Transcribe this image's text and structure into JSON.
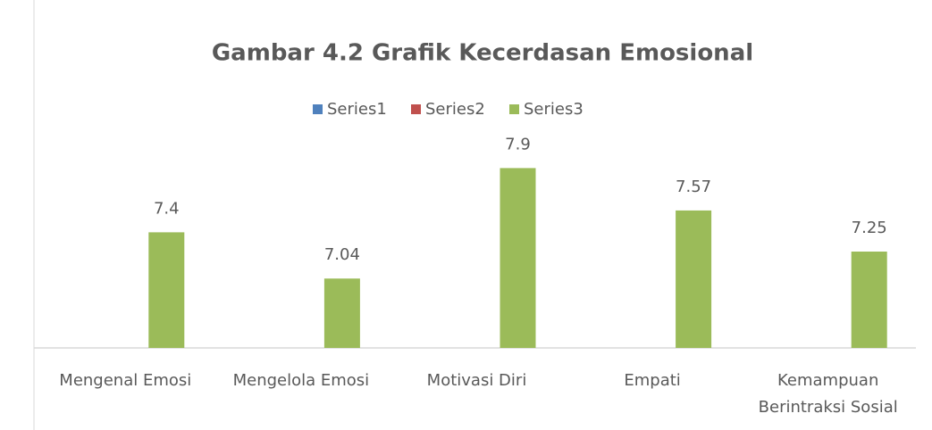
{
  "chart_data": {
    "type": "bar",
    "title": "Gambar 4.2 Grafik Kecerdasan Emosional",
    "categories": [
      "Mengenal Emosi",
      "Mengelola Emosi",
      "Motivasi Diri",
      "Empati",
      "Kemampuan Berintraksi Sosial"
    ],
    "series": [
      {
        "name": "Series1",
        "color": "#4f81bd",
        "values": [
          null,
          null,
          null,
          null,
          null
        ]
      },
      {
        "name": "Series2",
        "color": "#c0504d",
        "values": [
          null,
          null,
          null,
          null,
          null
        ]
      },
      {
        "name": "Series3",
        "color": "#9bbb59",
        "values": [
          7.4,
          7.04,
          7.9,
          7.57,
          7.25
        ]
      }
    ],
    "ylim": [
      6.5,
      8
    ],
    "legend": "top"
  }
}
